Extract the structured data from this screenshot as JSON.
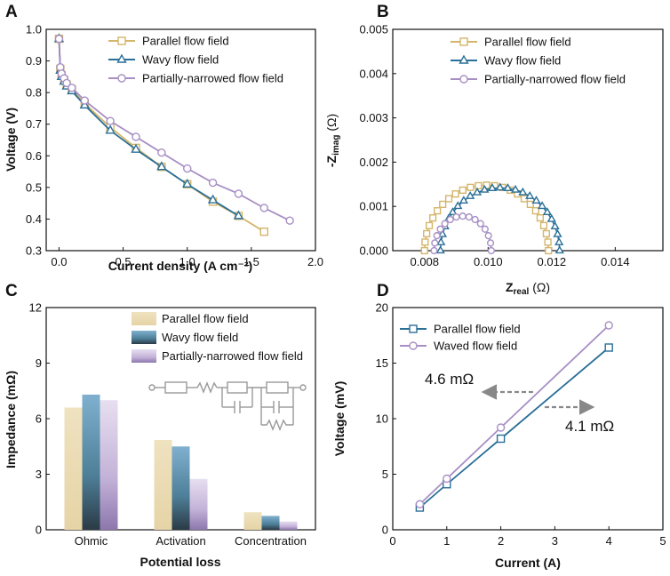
{
  "figure": {
    "colors": {
      "parallel": "#d4b56a",
      "wavy": "#2a6f97",
      "narrow": "#a78fc4",
      "axis": "#111111",
      "circuit": "#999999",
      "arrow": "#888888"
    }
  },
  "chart_data": [
    {
      "panel": "A",
      "type": "line",
      "xlabel": "Current density (A cm⁻²)",
      "ylabel": "Voltage (V)",
      "xlim": [
        -0.1,
        2.0
      ],
      "ylim": [
        0.3,
        1.0
      ],
      "xticks": [
        0.0,
        0.5,
        1.0,
        1.5,
        2.0
      ],
      "xtick_labels": [
        "0.0",
        "0.5",
        "1.0",
        "1.5",
        "2.0"
      ],
      "yticks": [
        0.3,
        0.4,
        0.5,
        0.6,
        0.7,
        0.8,
        0.9,
        1.0
      ],
      "ytick_labels": [
        "0.3",
        "0.4",
        "0.5",
        "0.6",
        "0.7",
        "0.8",
        "0.9",
        "1.0"
      ],
      "legend": [
        "Parallel flow field",
        "Wavy flow field",
        "Partially-narrowed flow field"
      ],
      "series": [
        {
          "name": "Parallel flow field",
          "color": "parallel",
          "marker": "square",
          "x": [
            0,
            0.01,
            0.02,
            0.04,
            0.06,
            0.1,
            0.2,
            0.4,
            0.6,
            0.8,
            1.0,
            1.2,
            1.4,
            1.6
          ],
          "y": [
            0.97,
            0.875,
            0.855,
            0.84,
            0.825,
            0.81,
            0.765,
            0.69,
            0.625,
            0.565,
            0.51,
            0.455,
            0.41,
            0.36
          ]
        },
        {
          "name": "Wavy flow field",
          "color": "wavy",
          "marker": "triangle",
          "x": [
            0,
            0.01,
            0.02,
            0.04,
            0.06,
            0.1,
            0.2,
            0.4,
            0.6,
            0.8,
            1.0,
            1.2,
            1.4
          ],
          "y": [
            0.97,
            0.87,
            0.85,
            0.835,
            0.82,
            0.805,
            0.76,
            0.68,
            0.62,
            0.565,
            0.51,
            0.46,
            0.41
          ]
        },
        {
          "name": "Partially-narrowed flow field",
          "color": "narrow",
          "marker": "circle",
          "x": [
            0,
            0.01,
            0.02,
            0.04,
            0.06,
            0.1,
            0.2,
            0.4,
            0.6,
            0.8,
            1.0,
            1.2,
            1.4,
            1.6,
            1.8
          ],
          "y": [
            0.97,
            0.88,
            0.86,
            0.845,
            0.83,
            0.815,
            0.775,
            0.71,
            0.66,
            0.61,
            0.56,
            0.515,
            0.48,
            0.435,
            0.395
          ]
        }
      ]
    },
    {
      "panel": "B",
      "type": "scatter",
      "xlabel": "Z_real (Ω)",
      "ylabel": "-Z_imag (Ω)",
      "xlim": [
        0.007,
        0.0155
      ],
      "ylim": [
        0.0,
        0.005
      ],
      "xticks": [
        0.008,
        0.01,
        0.012,
        0.014
      ],
      "xtick_labels": [
        "0.008",
        "0.010",
        "0.012",
        "0.014"
      ],
      "yticks": [
        0.0,
        0.001,
        0.002,
        0.003,
        0.004,
        0.005
      ],
      "ytick_labels": [
        "0.000",
        "0.001",
        "0.002",
        "0.003",
        "0.004",
        "0.005"
      ],
      "legend": [
        "Parallel flow field",
        "Wavy flow field",
        "Partially-narrowed flow field"
      ],
      "series": [
        {
          "name": "Parallel flow field",
          "color": "parallel",
          "marker": "square",
          "arc": {
            "start": 0.008,
            "end": 0.0119,
            "peak": 0.00148,
            "points": 24
          }
        },
        {
          "name": "Wavy flow field",
          "color": "wavy",
          "marker": "triangle",
          "arc": {
            "start": 0.0085,
            "end": 0.01225,
            "peak": 0.00142,
            "points": 24
          }
        },
        {
          "name": "Partially-narrowed flow field",
          "color": "narrow",
          "marker": "circle",
          "arc": {
            "start": 0.0083,
            "end": 0.0101,
            "peak": 0.00078,
            "points": 14
          }
        }
      ]
    },
    {
      "panel": "C",
      "type": "bar",
      "xlabel": "Potential loss",
      "ylabel": "Impedance (mΩ)",
      "ylim": [
        0,
        12
      ],
      "yticks": [
        0,
        3,
        6,
        9,
        12
      ],
      "ytick_labels": [
        "0",
        "3",
        "6",
        "9",
        "12"
      ],
      "categories": [
        "Ohmic",
        "Activation",
        "Concentration"
      ],
      "legend": [
        "Parallel flow field",
        "Wavy flow field",
        "Partially-narrowed flow field"
      ],
      "series": [
        {
          "name": "Parallel flow field",
          "color": "parallel",
          "values": [
            6.6,
            4.85,
            0.95
          ]
        },
        {
          "name": "Wavy flow field",
          "color": "wavy",
          "values": [
            7.3,
            4.5,
            0.75
          ]
        },
        {
          "name": "Partially-narrowed flow field",
          "color": "narrow",
          "values": [
            7.0,
            2.75,
            0.45
          ]
        }
      ]
    },
    {
      "panel": "D",
      "type": "line",
      "xlabel": "Current (A)",
      "ylabel": "Voltage (mV)",
      "xlim": [
        0,
        5
      ],
      "ylim": [
        0,
        20
      ],
      "xticks": [
        0,
        1,
        2,
        3,
        4,
        5
      ],
      "xtick_labels": [
        "0",
        "1",
        "2",
        "3",
        "4",
        "5"
      ],
      "yticks": [
        0,
        5,
        10,
        15,
        20
      ],
      "ytick_labels": [
        "0",
        "5",
        "10",
        "15",
        "20"
      ],
      "legend": [
        "Parallel flow field",
        "Waved flow field"
      ],
      "annotations": [
        "4.6 mΩ",
        "4.1 mΩ"
      ],
      "series": [
        {
          "name": "Parallel flow field",
          "color": "wavy",
          "marker": "square",
          "x": [
            0.5,
            1,
            2,
            4
          ],
          "y": [
            2.0,
            4.1,
            8.2,
            16.4
          ]
        },
        {
          "name": "Waved flow field",
          "color": "narrow",
          "marker": "circle",
          "x": [
            0.5,
            1,
            2,
            4
          ],
          "y": [
            2.3,
            4.6,
            9.2,
            18.4
          ]
        }
      ]
    }
  ]
}
